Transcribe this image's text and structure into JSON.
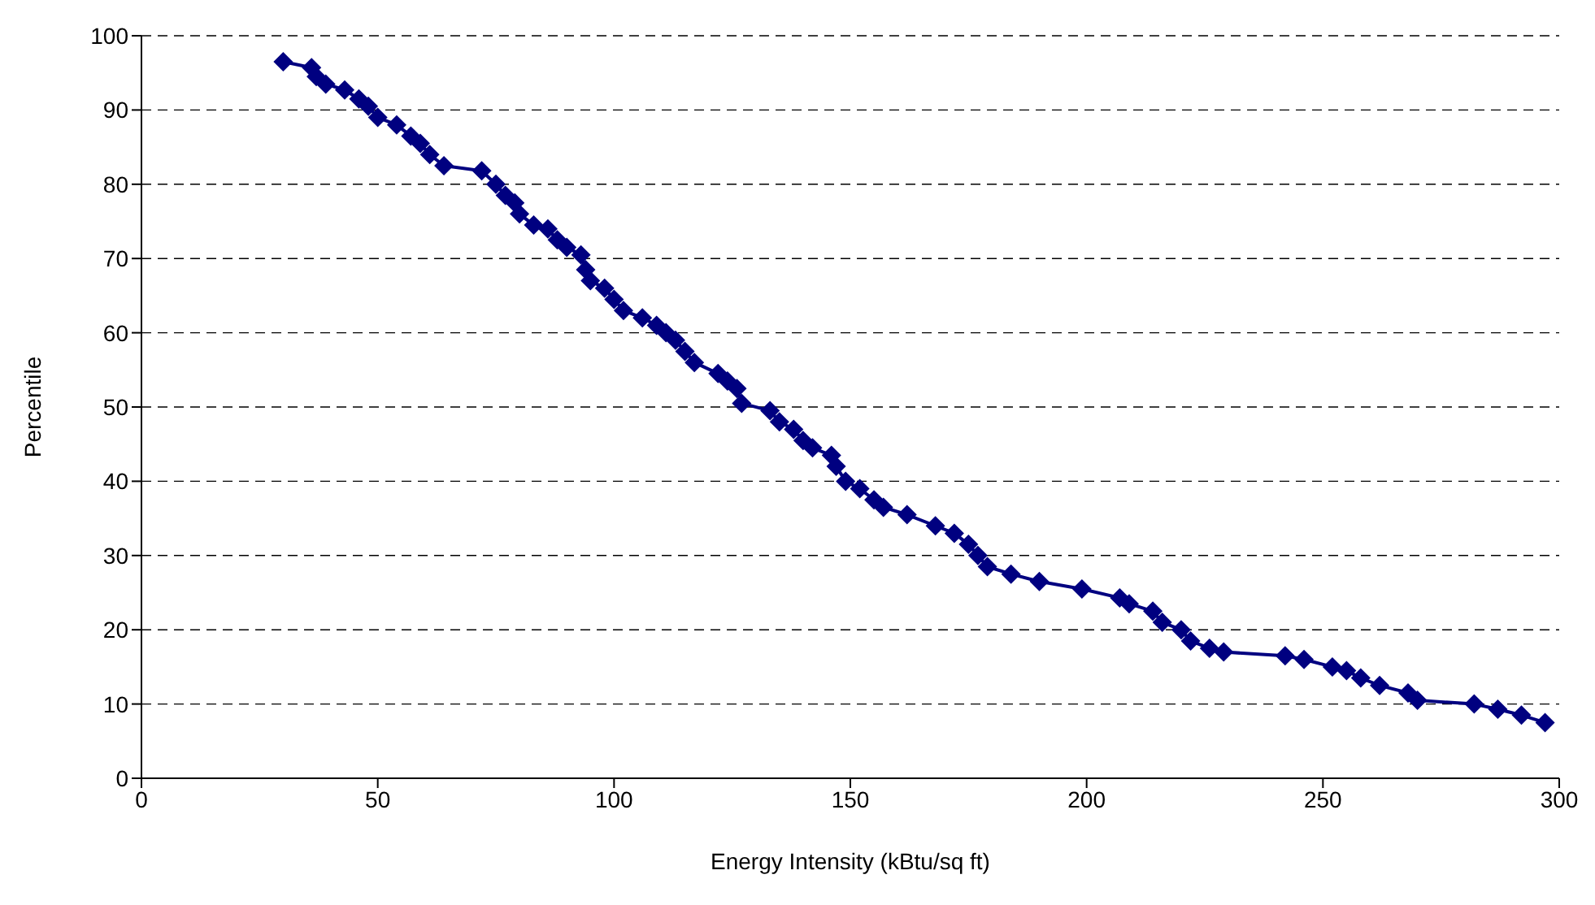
{
  "chart_data": {
    "type": "line",
    "xlabel": "Energy Intensity (kBtu/sq ft)",
    "ylabel": "Percentile",
    "x": [
      30,
      36,
      37,
      39,
      43,
      46,
      48,
      50,
      54,
      57,
      59,
      61,
      64,
      72,
      75,
      77,
      79,
      80,
      83,
      86,
      88,
      90,
      93,
      94,
      95,
      98,
      100,
      102,
      106,
      109,
      111,
      113,
      115,
      117,
      122,
      124,
      126,
      127,
      133,
      135,
      138,
      140,
      142,
      146,
      147,
      149,
      152,
      155,
      157,
      162,
      168,
      172,
      175,
      177,
      179,
      184,
      190,
      199,
      207,
      209,
      214,
      216,
      220,
      222,
      226,
      229,
      242,
      246,
      252,
      255,
      258,
      262,
      268,
      270,
      282,
      287,
      292,
      297
    ],
    "series": [
      {
        "color": "#000080",
        "values": [
          96.5,
          95.7,
          94.5,
          93.5,
          92.7,
          91.5,
          90.5,
          89,
          88,
          86.5,
          85.5,
          84,
          82.5,
          81.8,
          80,
          78.5,
          77.5,
          76,
          74.5,
          74,
          72.5,
          71.5,
          70.5,
          68.5,
          67,
          66,
          64.5,
          63,
          62,
          61,
          60,
          59,
          57.5,
          56,
          54.5,
          53.5,
          52.5,
          50.5,
          49.5,
          48,
          47,
          45.5,
          44.5,
          43.5,
          42,
          40,
          39,
          37.5,
          36.5,
          35.5,
          34,
          33,
          31.5,
          30,
          28.5,
          27.5,
          26.5,
          25.5,
          24.3,
          23.5,
          22.5,
          21,
          20,
          18.5,
          17.5,
          17,
          16.5,
          16,
          15,
          14.5,
          13.5,
          12.5,
          11.5,
          10.5,
          10,
          9.3,
          8.5,
          7.5
        ]
      }
    ],
    "xlim": [
      0,
      300
    ],
    "xticks": [
      0,
      50,
      100,
      150,
      200,
      250,
      300
    ],
    "ylim": [
      0,
      100
    ],
    "yticks": [
      0,
      10,
      20,
      30,
      40,
      50,
      60,
      70,
      80,
      90,
      100
    ],
    "grid": "y",
    "marker": "diamond",
    "line_style": "solid"
  }
}
